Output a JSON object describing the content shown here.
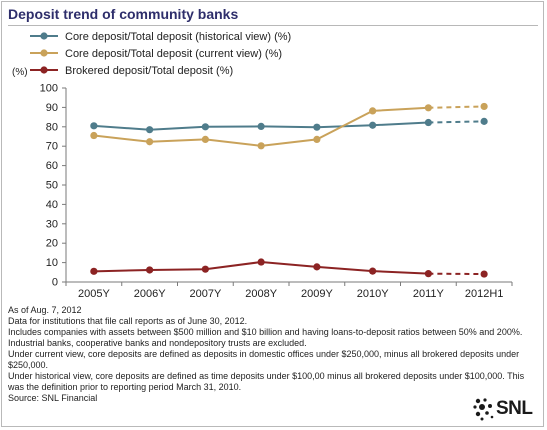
{
  "title": "Deposit trend of community banks",
  "chart_data": {
    "type": "line",
    "title": "Deposit trend of community banks",
    "ylabel": "(%)",
    "xlabel": "",
    "ylim": [
      0,
      100
    ],
    "yticks": [
      0,
      10,
      20,
      30,
      40,
      50,
      60,
      70,
      80,
      90,
      100
    ],
    "categories": [
      "2005Y",
      "2006Y",
      "2007Y",
      "2008Y",
      "2009Y",
      "2010Y",
      "2011Y",
      "2012H1"
    ],
    "legend_position": "top-left",
    "grid": false,
    "series": [
      {
        "name": "Core deposit/Total deposit (historical view) (%)",
        "color": "#4f7c8b",
        "values": [
          80.5,
          78.5,
          80.0,
          80.2,
          79.8,
          80.8,
          82.2,
          82.8
        ],
        "dashed_from_index": 6
      },
      {
        "name": "Core deposit/Total deposit (current view) (%)",
        "color": "#c9a25a",
        "values": [
          75.5,
          72.3,
          73.5,
          70.2,
          73.5,
          88.2,
          89.8,
          90.5
        ],
        "dashed_from_index": 6
      },
      {
        "name": "Brokered deposit/Total deposit (%)",
        "color": "#8c2323",
        "values": [
          5.5,
          6.2,
          6.6,
          10.3,
          7.8,
          5.6,
          4.3,
          4.1
        ],
        "dashed_from_index": 6
      }
    ]
  },
  "notes": [
    "As of Aug. 7, 2012",
    "Data for institutions that file call reports as of June 30, 2012.",
    "Includes companies with assets between $500 million and $10 billion and having loans-to-deposit ratios between 50% and 200%.",
    "Industrial banks, cooperative banks and nondepository trusts are excluded.",
    "Under current view, core deposits are defined as deposits in domestic offices under $250,000, minus all brokered deposits under $250,000.",
    "Under historical view, core deposits are defined as time deposits under $100,00 minus all brokered deposits under $100,000. This was the definition prior to reporting period March 31, 2010.",
    "Source: SNL Financial"
  ],
  "logo": {
    "text": "SNL"
  }
}
